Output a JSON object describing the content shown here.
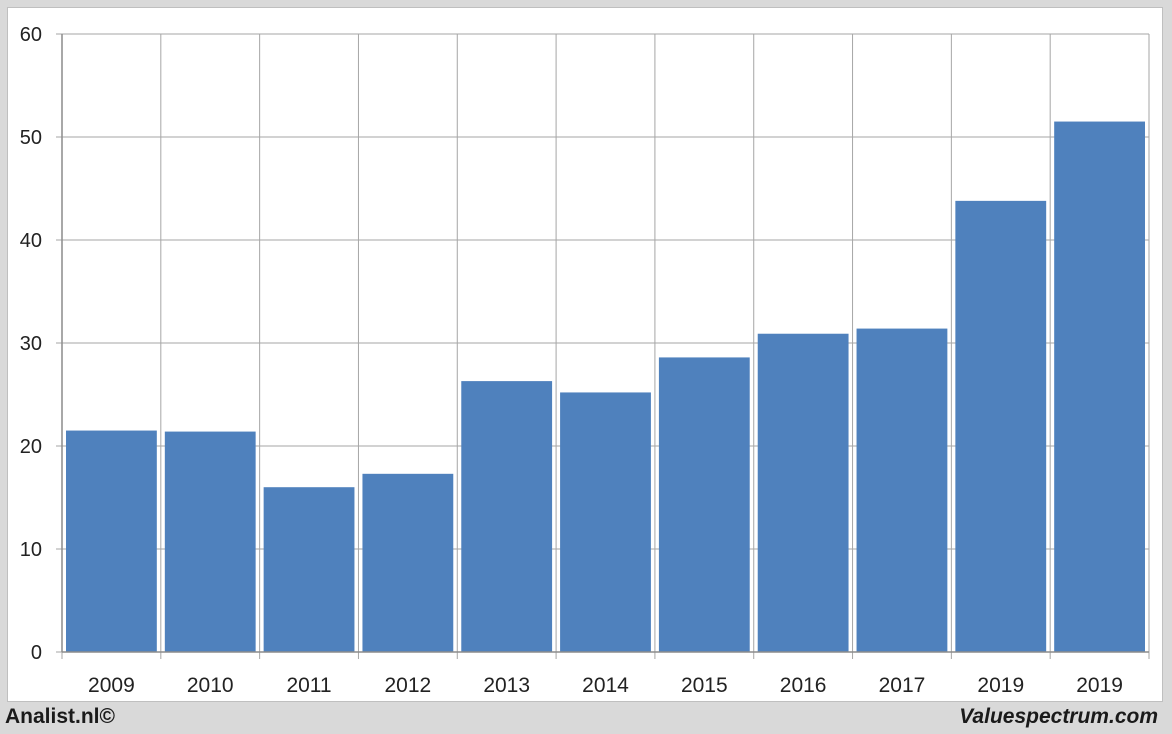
{
  "footer": {
    "left_text": "Analist.nl©",
    "right_text": "Valuespectrum.com"
  },
  "colors": {
    "bar": "#4f81bd",
    "grid": "#a6a6a6",
    "background": "#ffffff",
    "frame": "#d9d9d9"
  },
  "chart_data": {
    "type": "bar",
    "title": "",
    "xlabel": "",
    "ylabel": "",
    "categories": [
      "2009",
      "2010",
      "2011",
      "2012",
      "2013",
      "2014",
      "2015",
      "2016",
      "2017",
      "2019",
      "2019"
    ],
    "values": [
      21.5,
      21.4,
      16.0,
      17.3,
      26.3,
      25.2,
      28.6,
      30.9,
      31.4,
      43.8,
      51.5
    ],
    "ylim": [
      0,
      60
    ],
    "yticks": [
      0,
      10,
      20,
      30,
      40,
      50,
      60
    ],
    "grid": true,
    "legend": "none"
  }
}
